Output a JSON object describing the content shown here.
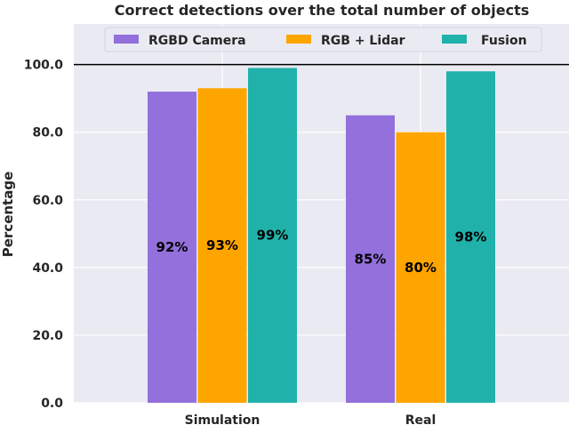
{
  "chart_data": {
    "type": "bar",
    "title": "Correct detections over the total number of objects",
    "xlabel": "",
    "ylabel": "Percentage",
    "categories": [
      "Simulation",
      "Real"
    ],
    "series": [
      {
        "name": "RGBD Camera",
        "values": [
          92,
          85
        ],
        "labels": [
          "92%",
          "85%"
        ],
        "color": "#9370db"
      },
      {
        "name": "RGB + Lidar",
        "values": [
          93,
          80
        ],
        "labels": [
          "93%",
          "80%"
        ],
        "color": "#ffa500"
      },
      {
        "name": "Fusion",
        "values": [
          99,
          98
        ],
        "labels": [
          "99%",
          "98%"
        ],
        "color": "#20b2aa"
      }
    ],
    "ylim": [
      0,
      112
    ],
    "yticks": [
      0,
      20,
      40,
      60,
      80,
      100
    ],
    "ytick_labels": [
      "0.0",
      "20.0",
      "40.0",
      "60.0",
      "80.0",
      "100.0"
    ],
    "reference_line": 100,
    "grid": true,
    "legend_position": "top",
    "background_color": "#eaeaf2",
    "grid_color": "#ffffff"
  }
}
